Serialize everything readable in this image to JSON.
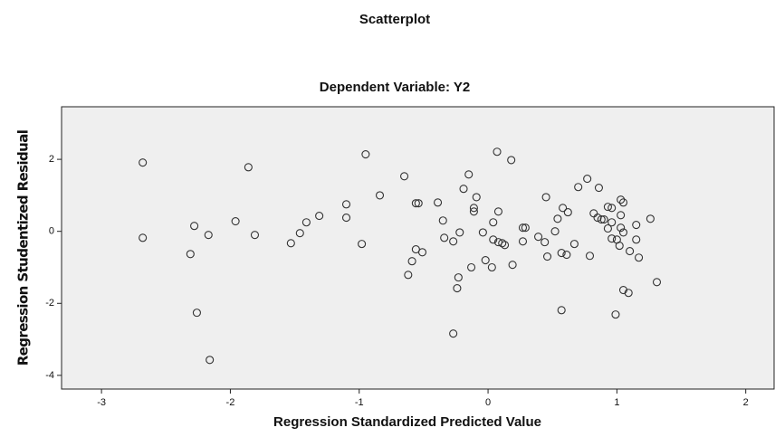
{
  "chart_data": {
    "type": "scatter",
    "title": "Scatterplot",
    "subtitle": "Dependent Variable: Y2",
    "x_label": "Regression Standardized Predicted Value",
    "y_label": "Regression Studentized Residual",
    "xlim": [
      -3.31,
      2.22
    ],
    "ylim": [
      -4.38,
      3.46
    ],
    "xticks": [
      -3,
      -2,
      -1,
      0,
      1,
      2
    ],
    "yticks": [
      -4,
      -2,
      0,
      2
    ],
    "color": "#333333",
    "background": "#efefef",
    "x": [
      -2.68,
      -2.68,
      -2.28,
      -2.31,
      -2.17,
      -2.26,
      -2.16,
      -1.96,
      -1.86,
      -1.81,
      -1.53,
      -1.46,
      -1.41,
      -1.31,
      -1.1,
      -1.1,
      -0.98,
      -0.95,
      -0.84,
      -0.65,
      -0.59,
      -0.56,
      -0.56,
      -0.54,
      -0.51,
      -0.62,
      -0.39,
      -0.35,
      -0.34,
      -0.27,
      -0.22,
      -0.27,
      -0.23,
      -0.24,
      -0.13,
      -0.19,
      -0.15,
      -0.11,
      -0.09,
      -0.11,
      -0.02,
      0.03,
      0.04,
      -0.04,
      0.04,
      0.08,
      0.11,
      0.13,
      0.08,
      0.07,
      0.18,
      0.19,
      0.27,
      0.29,
      0.27,
      0.39,
      0.44,
      0.46,
      0.45,
      0.52,
      0.54,
      0.57,
      0.58,
      0.62,
      0.61,
      0.57,
      0.67,
      0.7,
      0.77,
      0.79,
      0.82,
      0.85,
      0.86,
      0.88,
      0.9,
      0.93,
      0.96,
      0.93,
      0.96,
      0.96,
      1.0,
      1.03,
      1.03,
      1.05,
      1.03,
      1.05,
      0.99,
      1.02,
      1.05,
      1.09,
      1.1,
      1.15,
      1.15,
      1.17,
      1.26,
      1.31
    ],
    "y": [
      1.91,
      -0.18,
      0.15,
      -0.63,
      -0.1,
      -2.26,
      -3.57,
      0.28,
      1.78,
      -0.1,
      -0.33,
      -0.05,
      0.25,
      0.43,
      0.75,
      0.38,
      -0.35,
      2.14,
      1.0,
      1.53,
      -0.83,
      -0.5,
      0.78,
      0.78,
      -0.58,
      -1.21,
      0.8,
      0.3,
      -0.18,
      -0.28,
      -0.03,
      -2.84,
      -1.28,
      -1.58,
      -1.0,
      1.18,
      1.58,
      0.55,
      0.95,
      0.65,
      -0.8,
      -1.0,
      0.25,
      -0.03,
      -0.23,
      -0.3,
      -0.33,
      -0.38,
      0.55,
      2.21,
      1.98,
      -0.93,
      0.1,
      0.1,
      -0.28,
      -0.15,
      -0.3,
      -0.7,
      0.95,
      0.0,
      0.35,
      -0.6,
      0.65,
      0.53,
      -0.65,
      -2.19,
      -0.35,
      1.23,
      1.46,
      -0.68,
      0.5,
      0.38,
      1.21,
      0.33,
      0.33,
      0.68,
      0.65,
      0.08,
      0.25,
      -0.2,
      -0.23,
      0.1,
      0.88,
      0.8,
      0.45,
      -0.03,
      -2.31,
      -0.4,
      -1.63,
      -1.71,
      -0.55,
      0.18,
      -0.23,
      -0.73,
      0.35,
      -1.41
    ]
  }
}
